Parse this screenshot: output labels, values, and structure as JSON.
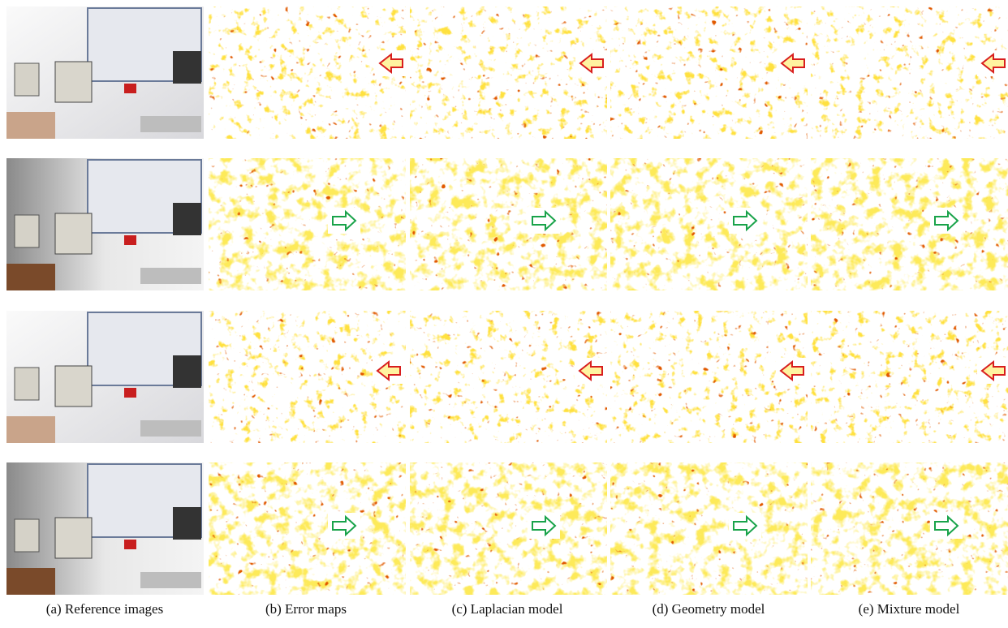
{
  "captions": [
    "(a) Reference images",
    "(b) Error maps",
    "(c) Laplacian model",
    "(d) Geometry model",
    "(e) Mixture model"
  ]
}
